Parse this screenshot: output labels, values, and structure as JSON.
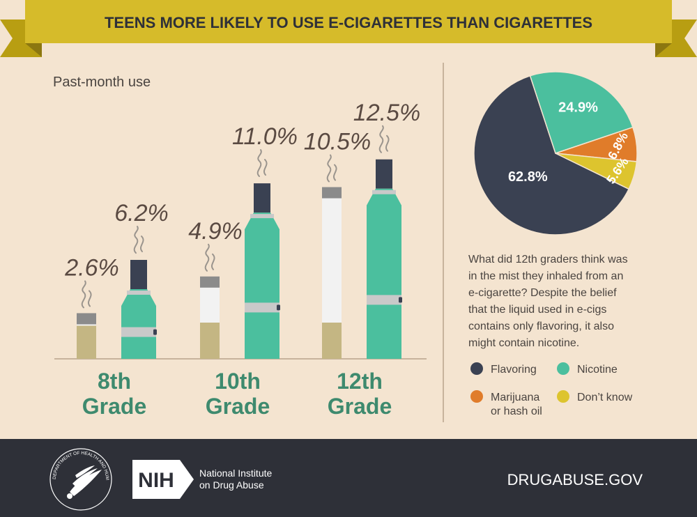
{
  "header": {
    "title": "TEENS MORE LIKELY TO USE E-CIGARETTES THAN CIGARETTES"
  },
  "colors": {
    "background": "#f4e4d0",
    "banner": "#d6bb2a",
    "banner_dark": "#b89e12",
    "teal": "#4bbf9e",
    "dark": "#3a4152",
    "orange": "#e07c2a",
    "yellow": "#ddc42e",
    "green_text": "#3e8a6e",
    "footer": "#2e3038",
    "cig_white": "#f2f2f2",
    "cig_filter": "#c4b683",
    "ash": "#8b8b8b",
    "band": "#c9c9c9",
    "label_brown": "#5a4a42"
  },
  "chart_data": [
    {
      "type": "bar",
      "subtitle": "Past-month use",
      "categories": [
        "8th Grade",
        "10th Grade",
        "12th Grade"
      ],
      "category_lines": [
        [
          "8th",
          "Grade"
        ],
        [
          "10th",
          "Grade"
        ],
        [
          "12th",
          "Grade"
        ]
      ],
      "series": [
        {
          "icon": "cigarette",
          "values": [
            2.6,
            4.9,
            10.5
          ],
          "labels": [
            "2.6%",
            "4.9%",
            "10.5%"
          ]
        },
        {
          "icon": "e-cigarette",
          "values": [
            6.2,
            11.0,
            12.5
          ],
          "labels": [
            "6.2%",
            "11.0%",
            "12.5%"
          ]
        }
      ]
    },
    {
      "type": "pie",
      "slices": [
        {
          "name": "Flavoring",
          "value": 62.8,
          "label": "62.8%",
          "color": "#3a4152"
        },
        {
          "name": "Nicotine",
          "value": 24.9,
          "label": "24.9%",
          "color": "#4bbf9e"
        },
        {
          "name": "Marijuana or hash oil",
          "value": 6.8,
          "label": "6.8%",
          "color": "#e07c2a"
        },
        {
          "name": "Don’t know",
          "value": 5.6,
          "label": "5.6%",
          "color": "#ddc42e"
        }
      ],
      "legend": [
        {
          "lines": [
            "Flavoring"
          ],
          "color": "#3a4152"
        },
        {
          "lines": [
            "Nicotine"
          ],
          "color": "#4bbf9e"
        },
        {
          "lines": [
            "Marijuana",
            "or hash oil"
          ],
          "color": "#e07c2a"
        },
        {
          "lines": [
            "Don’t know"
          ],
          "color": "#ddc42e"
        }
      ],
      "description_lines": [
        "What did 12th graders think was",
        "in the mist they inhaled from an",
        "e-cigarette? Despite the belief",
        "that the liquid used in e-cigs",
        "contains only flavoring, it also",
        "might contain nicotine."
      ]
    }
  ],
  "footer": {
    "nih_logo": "NIH",
    "institute_line1": "National Institute",
    "institute_line2": "on Drug Abuse",
    "hhs_seal_text": "DEPARTMENT OF HEALTH AND HUMAN SERVICES USA",
    "website": "DRUGABUSE.GOV"
  }
}
